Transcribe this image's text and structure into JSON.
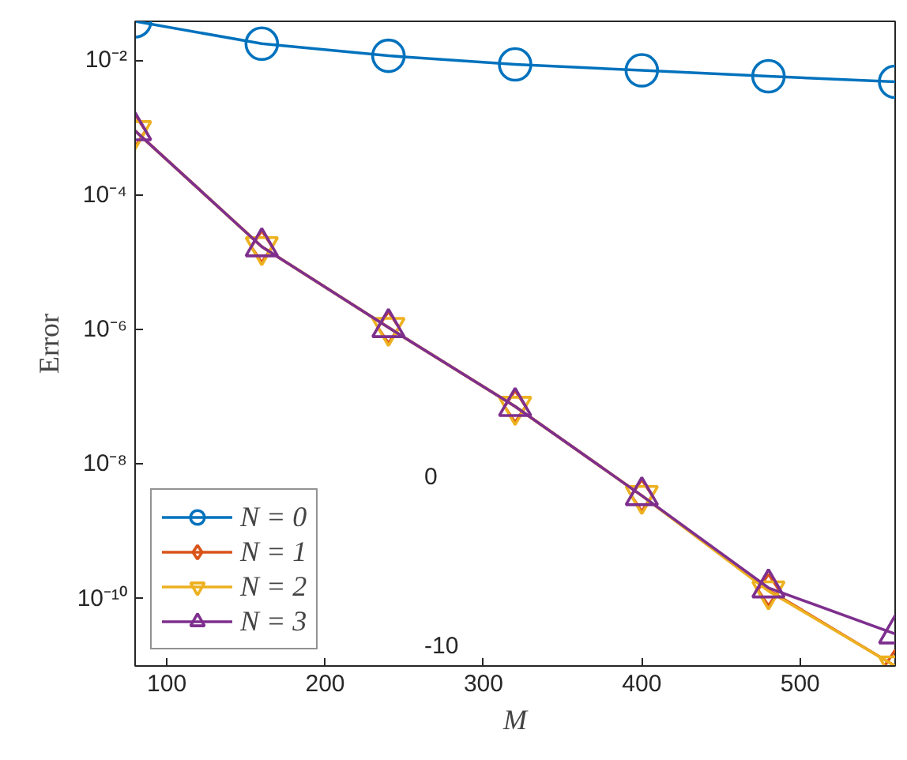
{
  "chart_data": {
    "type": "line",
    "xlabel": "M",
    "ylabel": "Error",
    "log": "y",
    "x": [
      80,
      160,
      240,
      320,
      400,
      480,
      560
    ],
    "xlim": [
      80,
      560
    ],
    "xticks": [
      100,
      200,
      300,
      400,
      500
    ],
    "ylim": [
      1e-11,
      0.038
    ],
    "yticks": [
      {
        "value": 1e-10,
        "label": "10⁻¹⁰"
      },
      {
        "value": 1e-08,
        "label": "10⁻⁸"
      },
      {
        "value": 1e-06,
        "label": "10⁻⁶"
      },
      {
        "value": 0.0001,
        "label": "10⁻⁴"
      },
      {
        "value": 0.01,
        "label": "10⁻²"
      }
    ],
    "grid": false,
    "legend": "bottom left",
    "line_style": "solid",
    "annotations": [
      "0",
      "-10"
    ],
    "series": [
      {
        "name": "N = 0",
        "color": "#0072bd",
        "marker": "circle",
        "values": [
          0.038,
          0.0177,
          0.0117,
          0.0087,
          0.0071,
          0.0058,
          0.0048
        ]
      },
      {
        "name": "N = 1",
        "color": "#d95319",
        "marker": "diamond",
        "values": [
          0.0009,
          1.7e-05,
          1.07e-06,
          7.2e-08,
          3.4e-09,
          1.35e-10,
          1e-11
        ]
      },
      {
        "name": "N = 2",
        "color": "#edb120",
        "marker": "triangle",
        "values": [
          0.0009,
          1.7e-05,
          1.07e-06,
          7.2e-08,
          3.4e-09,
          1.3e-10,
          1e-11
        ]
      },
      {
        "name": "N = 3",
        "color": "#7e2f8e",
        "marker": "triangle",
        "values": [
          0.0009,
          1.7e-05,
          1.07e-06,
          7.2e-08,
          3.4e-09,
          1.45e-10,
          3e-11
        ]
      }
    ]
  }
}
